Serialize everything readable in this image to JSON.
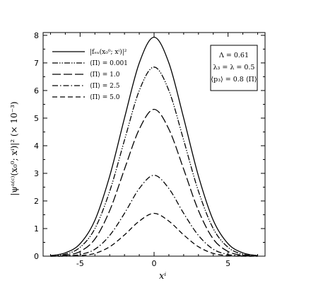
{
  "chart_data": {
    "type": "line",
    "title": "",
    "xlabel": "xⁱ",
    "ylabel": "|ψᵃ⁽ᶜ⁾(x₀⁰; xⁱ)|² (× 10⁻³)",
    "xlim": [
      -7.5,
      7.5
    ],
    "ylim": [
      0,
      8.1
    ],
    "xticks": [
      -5,
      0,
      5
    ],
    "yticks": [
      0,
      1,
      2,
      3,
      4,
      5,
      6,
      7,
      8
    ],
    "grid": false,
    "legend_position": "top-left",
    "note_lines": [
      "Λ = 0.61",
      "λ₃ = λ = 0.5",
      "⟨p₃⟩ = 0.8 ⟨Π⟩"
    ],
    "series": [
      {
        "name": "|fₑₓ(x₀⁰; xⁱ)|²",
        "style": "solid",
        "x": [
          -7,
          -6,
          -5,
          -4,
          -3,
          -2,
          -1,
          0,
          1,
          2,
          3,
          4,
          5,
          6,
          7
        ],
        "values": [
          0.02,
          0.12,
          0.45,
          1.3,
          2.9,
          5.0,
          7.0,
          7.93,
          7.0,
          5.0,
          2.9,
          1.3,
          0.45,
          0.12,
          0.02
        ]
      },
      {
        "name": "⟨Π⟩ = 0.001",
        "style": "dash-dot-dot",
        "x": [
          -7,
          -6,
          -5,
          -4,
          -3,
          -2,
          -1,
          0,
          1,
          2,
          3,
          4,
          5,
          6,
          7
        ],
        "values": [
          0.01,
          0.07,
          0.32,
          1.0,
          2.35,
          4.2,
          6.0,
          6.85,
          6.0,
          4.2,
          2.35,
          1.0,
          0.32,
          0.07,
          0.01
        ]
      },
      {
        "name": "⟨Π⟩ = 1.0",
        "style": "long-dash",
        "x": [
          -7,
          -6,
          -5,
          -4,
          -3,
          -2,
          -1,
          0,
          1,
          2,
          3,
          4,
          5,
          6,
          7
        ],
        "values": [
          0.0,
          0.03,
          0.17,
          0.62,
          1.65,
          3.15,
          4.6,
          5.32,
          4.6,
          3.15,
          1.65,
          0.62,
          0.17,
          0.03,
          0.0
        ]
      },
      {
        "name": "⟨Π⟩ = 2.5",
        "style": "dash-dot",
        "x": [
          -7,
          -6,
          -5,
          -4,
          -3,
          -2,
          -1,
          0,
          1,
          2,
          3,
          4,
          5,
          6,
          7
        ],
        "values": [
          0.0,
          0.01,
          0.06,
          0.25,
          0.75,
          1.55,
          2.45,
          2.93,
          2.45,
          1.55,
          0.75,
          0.25,
          0.06,
          0.01,
          0.0
        ]
      },
      {
        "name": "⟨Π⟩ = 5.0",
        "style": "dash",
        "x": [
          -7,
          -6,
          -5,
          -4,
          -3,
          -2,
          -1,
          0,
          1,
          2,
          3,
          4,
          5,
          6,
          7
        ],
        "values": [
          0.0,
          0.0,
          0.02,
          0.1,
          0.34,
          0.77,
          1.27,
          1.55,
          1.27,
          0.77,
          0.34,
          0.1,
          0.02,
          0.0,
          0.0
        ]
      }
    ]
  }
}
